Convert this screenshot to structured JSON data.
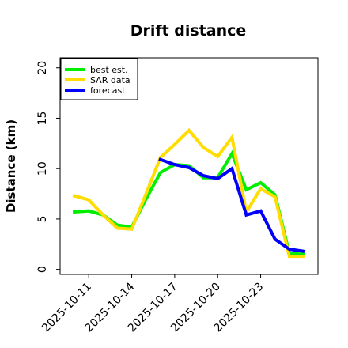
{
  "chart_data": {
    "type": "line",
    "title": "Drift distance",
    "xlabel": "",
    "ylabel": "Distance (km)",
    "x": [
      "2025-10-10",
      "2025-10-11",
      "2025-10-12",
      "2025-10-13",
      "2025-10-14",
      "2025-10-15",
      "2025-10-16",
      "2025-10-17",
      "2025-10-18",
      "2025-10-19",
      "2025-10-20",
      "2025-10-21",
      "2025-10-22",
      "2025-10-23",
      "2025-10-24",
      "2025-10-25",
      "2025-10-26"
    ],
    "xticks": [
      "2025-10-11",
      "2025-10-14",
      "2025-10-17",
      "2025-10-20",
      "2025-10-23"
    ],
    "xlim": [
      "2025-10-09",
      "2025-10-27"
    ],
    "ylim": [
      -0.5,
      21
    ],
    "yticks": [
      0,
      5,
      10,
      15,
      20
    ],
    "legend_position": "upper left",
    "series": [
      {
        "name": "best est.",
        "color": "#00ee00",
        "values": [
          5.7,
          5.8,
          5.4,
          4.4,
          4.2,
          7.0,
          9.6,
          10.4,
          10.3,
          9.1,
          9.1,
          11.5,
          7.9,
          8.6,
          7.4,
          1.6,
          1.5
        ]
      },
      {
        "name": "SAR data",
        "color": "#ffdd00",
        "values": [
          7.3,
          6.9,
          5.4,
          4.1,
          4.0,
          7.5,
          11.1,
          12.4,
          13.8,
          12.1,
          11.2,
          13.1,
          5.7,
          8.0,
          7.2,
          1.3,
          1.3
        ]
      },
      {
        "name": "forecast",
        "color": "#0000ff",
        "values": [
          null,
          null,
          null,
          null,
          null,
          null,
          10.9,
          10.4,
          10.1,
          9.3,
          9.0,
          10.0,
          5.4,
          5.8,
          3.0,
          2.0,
          1.8
        ]
      }
    ]
  }
}
